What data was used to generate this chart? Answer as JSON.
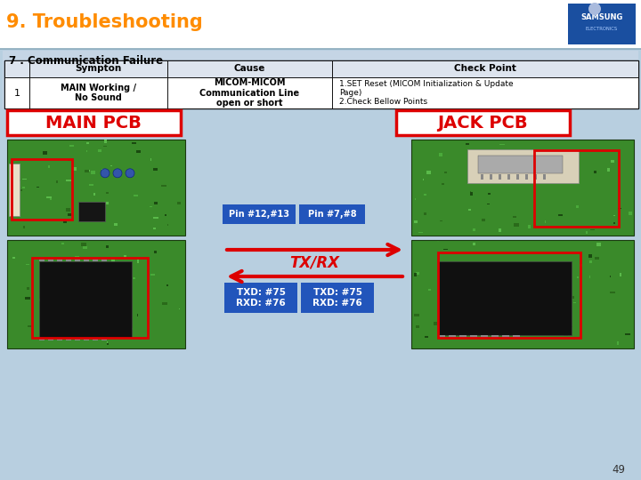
{
  "title": "9. Troubleshooting",
  "title_color": "#FF8C00",
  "bg_color": "#b8cfe0",
  "white": "#ffffff",
  "black": "#000000",
  "section_title": "7 . Communication Failure",
  "table_headers": [
    "Sympton",
    "Cause",
    "Check Point"
  ],
  "table_row_num": "1",
  "table_col1": "MAIN Working /\nNo Sound",
  "table_col2": "MICOM-MICOM\nCommunication Line\nopen or short",
  "table_col3": "1.SET Reset (MICOM Initialization & Update\nPage)\n2.Check Bellow Points",
  "main_pcb_label": "MAIN PCB",
  "jack_pcb_label": "JACK PCB",
  "pin_label1": "Pin #12,#13",
  "pin_label2": "Pin #7,#8",
  "txrx_label": "TX/RX",
  "txd_rxd_left": "TXD: #75\nRXD: #76",
  "txd_rxd_right": "TXD: #75\nRXD: #76",
  "page_num": "49",
  "blue_box_color": "#2255bb",
  "red_label_color": "#dd0000",
  "red_border_color": "#dd0000",
  "arrow_color": "#dd0000",
  "table_header_bg": "#dde4ee",
  "table_section_bg": "#c8d8e8",
  "samsung_blue": "#1a4fa0",
  "pcb_green": "#3a8a2a",
  "pcb_dark": "#1a4a10",
  "pcb_green2": "#2d7020"
}
